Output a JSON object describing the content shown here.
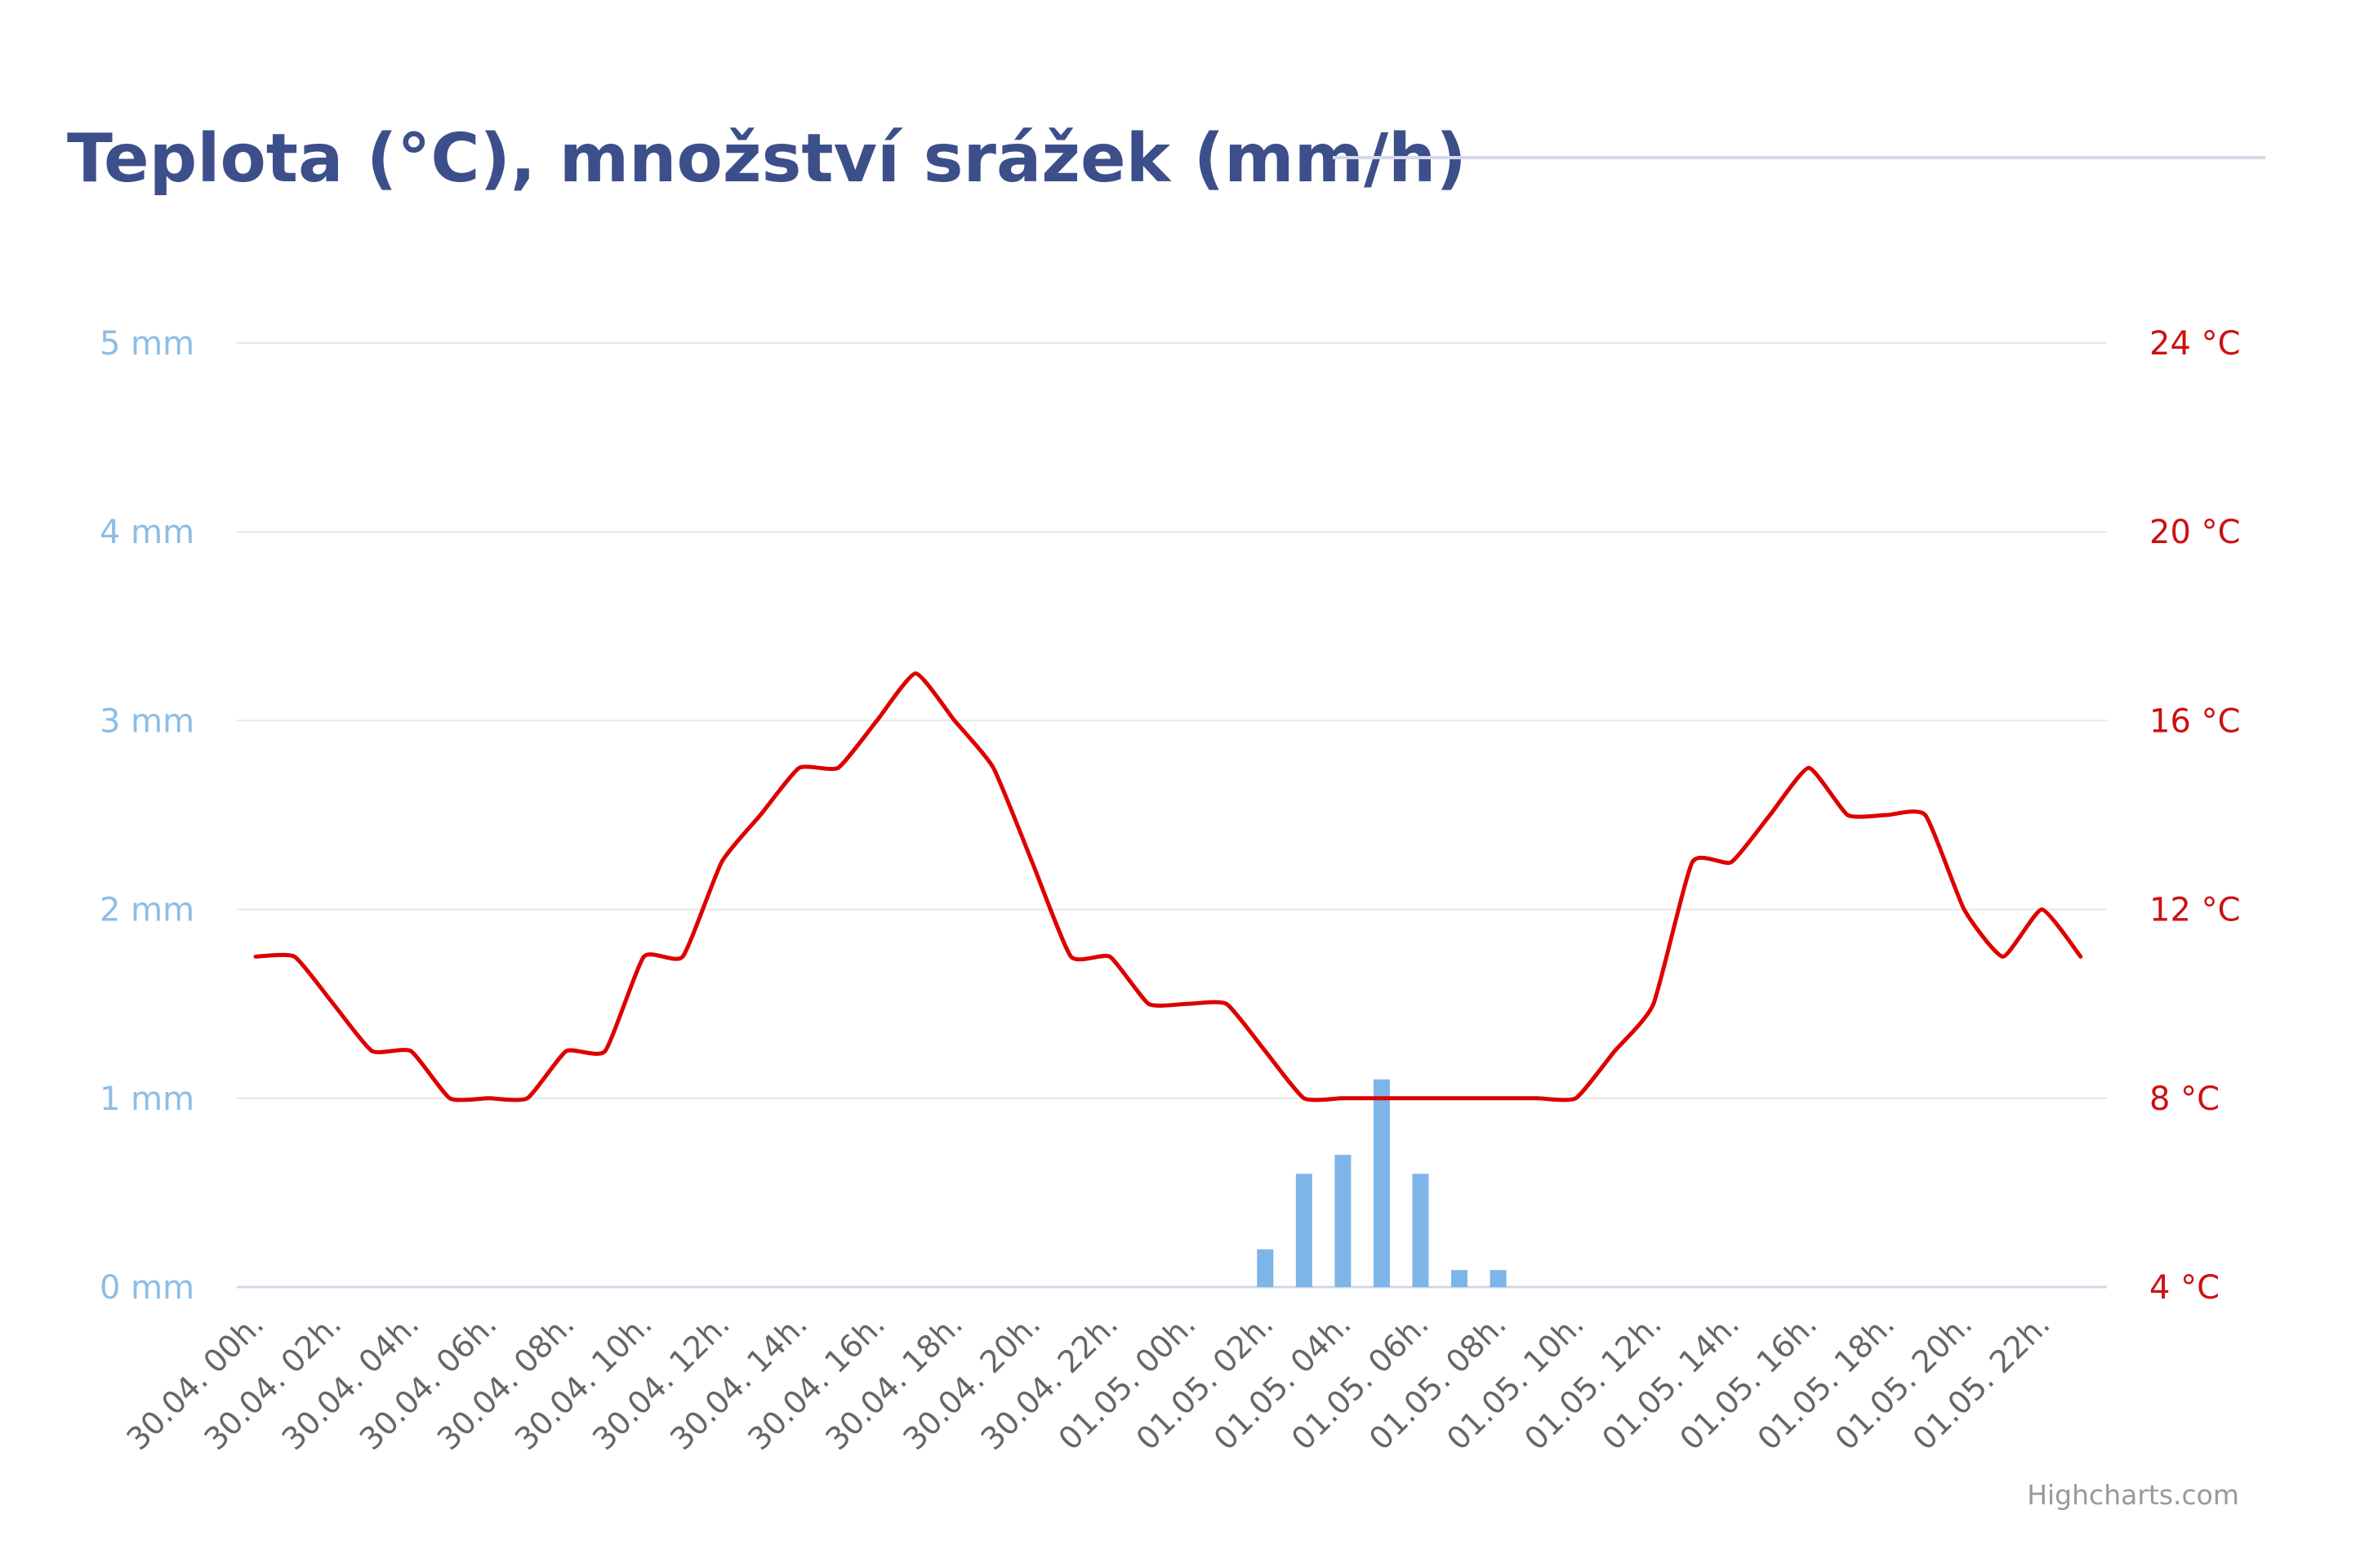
{
  "title": "Teplota (°C), množství srážek (mm/h)",
  "credits": "Highcharts.com",
  "colors": {
    "title": "#3d4f8a",
    "title_rule": "#d5d9e9",
    "precip": "#7eb5e8",
    "precip_label": "#8dbde6",
    "temperature": "#dd0000",
    "temperature_label": "#cc1111",
    "grid": "#e6e6e6",
    "x_label": "#666666",
    "credits": "#999999"
  },
  "chart_data": {
    "type": "bar+line",
    "title": "Teplota (°C), množství srážek (mm/h)",
    "grid": true,
    "x_tick_labels": [
      "30.04. 00h.",
      "30.04. 02h.",
      "30.04. 04h.",
      "30.04. 06h.",
      "30.04. 08h.",
      "30.04. 10h.",
      "30.04. 12h.",
      "30.04. 14h.",
      "30.04. 16h.",
      "30.04. 18h.",
      "30.04. 20h.",
      "30.04. 22h.",
      "01.05. 00h.",
      "01.05. 02h.",
      "01.05. 04h.",
      "01.05. 06h.",
      "01.05. 08h.",
      "01.05. 10h.",
      "01.05. 12h.",
      "01.05. 14h.",
      "01.05. 16h.",
      "01.05. 18h.",
      "01.05. 20h.",
      "01.05. 22h."
    ],
    "y_left": {
      "ticks": [
        0,
        1,
        2,
        3,
        4,
        5
      ],
      "tick_labels": [
        "0 mm",
        "1 mm",
        "2 mm",
        "3 mm",
        "4 mm",
        "5 mm"
      ],
      "range": [
        0,
        5
      ]
    },
    "y_right": {
      "ticks": [
        4,
        8,
        12,
        16,
        20,
        24
      ],
      "tick_labels": [
        "4 °C",
        "8 °C",
        "12 °C",
        "16 °C",
        "20 °C",
        "24 °C"
      ],
      "range": [
        4,
        24
      ]
    },
    "series": [
      {
        "type": "column",
        "axis": "left",
        "values": [
          0,
          0,
          0,
          0,
          0,
          0,
          0,
          0,
          0,
          0,
          0,
          0,
          0,
          0,
          0,
          0,
          0,
          0,
          0,
          0,
          0,
          0,
          0,
          0,
          0,
          0,
          0.2,
          0.6,
          0.7,
          1.1,
          0.6,
          0.09,
          0.09,
          0,
          0,
          0,
          0,
          0,
          0,
          0,
          0,
          0,
          0,
          0,
          0,
          0,
          0,
          0
        ]
      },
      {
        "type": "spline",
        "axis": "right",
        "values": [
          11,
          11,
          10,
          9,
          9,
          8,
          8,
          8,
          9,
          9,
          11,
          11,
          13,
          14,
          15,
          15,
          16,
          17,
          16,
          15,
          13,
          11,
          11,
          10,
          10,
          10,
          9,
          8,
          8,
          8,
          8,
          8,
          8,
          8,
          8,
          9,
          10,
          13,
          13,
          14,
          15,
          14,
          14,
          14,
          12,
          11,
          12,
          11
        ]
      }
    ]
  }
}
